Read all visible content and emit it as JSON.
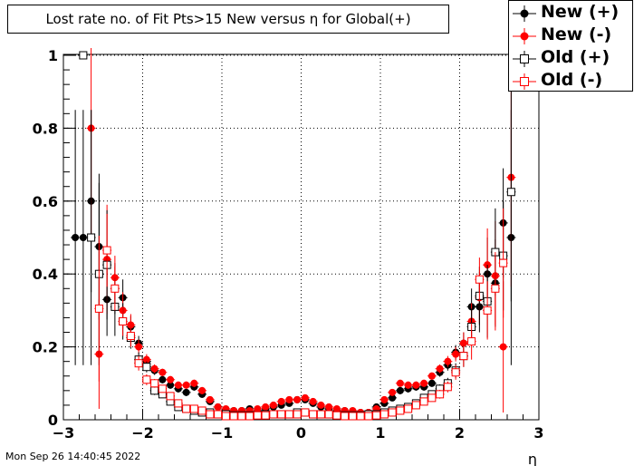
{
  "title": "Lost rate no. of Fit Pts>15 New versus η for Global(+)",
  "footer": "Mon Sep 26 14:40:45 2022",
  "chart_data": {
    "type": "scatter",
    "title": "Lost rate no. of Fit Pts>15 New versus η for Global(+)",
    "xlabel": "η",
    "ylabel": "",
    "xlim": [
      -3,
      3
    ],
    "ylim": [
      0,
      1.02
    ],
    "xticks": [
      "−3",
      "−2",
      "−1",
      "0",
      "1",
      "2",
      "3"
    ],
    "yticks": [
      "0",
      "0.2",
      "0.4",
      "0.6",
      "0.8",
      "1"
    ],
    "grid": true,
    "legend_position": "top-right",
    "series": [
      {
        "name": "New (+)",
        "marker": "filled-circle",
        "color": "#000000",
        "x": [
          -2.85,
          -2.75,
          -2.65,
          -2.55,
          -2.45,
          -2.35,
          -2.25,
          -2.15,
          -2.05,
          -1.95,
          -1.85,
          -1.75,
          -1.65,
          -1.55,
          -1.45,
          -1.35,
          -1.25,
          -1.15,
          -1.05,
          -0.95,
          -0.85,
          -0.75,
          -0.65,
          -0.55,
          -0.45,
          -0.35,
          -0.25,
          -0.15,
          -0.05,
          0.05,
          0.15,
          0.25,
          0.35,
          0.45,
          0.55,
          0.65,
          0.75,
          0.85,
          0.95,
          1.05,
          1.15,
          1.25,
          1.35,
          1.45,
          1.55,
          1.65,
          1.75,
          1.85,
          1.95,
          2.05,
          2.15,
          2.25,
          2.35,
          2.45,
          2.55,
          2.65
        ],
        "y": [
          0.5,
          0.5,
          0.6,
          0.475,
          0.33,
          0.36,
          0.335,
          0.255,
          0.21,
          0.16,
          0.135,
          0.11,
          0.095,
          0.085,
          0.075,
          0.09,
          0.07,
          0.05,
          0.035,
          0.025,
          0.025,
          0.025,
          0.03,
          0.025,
          0.03,
          0.035,
          0.04,
          0.045,
          0.055,
          0.055,
          0.045,
          0.035,
          0.03,
          0.025,
          0.025,
          0.02,
          0.02,
          0.02,
          0.035,
          0.045,
          0.06,
          0.08,
          0.085,
          0.09,
          0.09,
          0.1,
          0.13,
          0.15,
          0.185,
          0.21,
          0.31,
          0.31,
          0.4,
          0.375,
          0.54,
          0.5
        ],
        "err": [
          0.35,
          0.35,
          0.25,
          0.2,
          0.1,
          0.07,
          0.05,
          0.03,
          0.02,
          0.015,
          0.012,
          0.01,
          0.01,
          0.01,
          0.01,
          0.01,
          0.01,
          0.008,
          0.006,
          0.006,
          0.006,
          0.006,
          0.006,
          0.006,
          0.006,
          0.006,
          0.006,
          0.006,
          0.006,
          0.006,
          0.006,
          0.006,
          0.006,
          0.006,
          0.006,
          0.006,
          0.006,
          0.006,
          0.006,
          0.006,
          0.008,
          0.01,
          0.01,
          0.01,
          0.01,
          0.01,
          0.012,
          0.015,
          0.02,
          0.03,
          0.05,
          0.07,
          0.1,
          0.12,
          0.15,
          0.35
        ]
      },
      {
        "name": "New (-)",
        "marker": "filled-circle",
        "color": "#ff0000",
        "x": [
          -2.55,
          -2.65,
          -2.45,
          -2.35,
          -2.25,
          -2.15,
          -2.05,
          -1.95,
          -1.85,
          -1.75,
          -1.65,
          -1.55,
          -1.45,
          -1.35,
          -1.25,
          -1.15,
          -1.05,
          -0.95,
          -0.85,
          -0.75,
          -0.65,
          -0.55,
          -0.45,
          -0.35,
          -0.25,
          -0.15,
          -0.05,
          0.05,
          0.15,
          0.25,
          0.35,
          0.45,
          0.55,
          0.65,
          0.75,
          0.85,
          0.95,
          1.05,
          1.15,
          1.25,
          1.35,
          1.45,
          1.55,
          1.65,
          1.75,
          1.85,
          1.95,
          2.05,
          2.15,
          2.25,
          2.35,
          2.45,
          2.55,
          2.65
        ],
        "y": [
          0.18,
          0.8,
          0.44,
          0.39,
          0.3,
          0.26,
          0.2,
          0.165,
          0.14,
          0.13,
          0.11,
          0.095,
          0.095,
          0.1,
          0.08,
          0.055,
          0.035,
          0.03,
          0.025,
          0.025,
          0.025,
          0.03,
          0.035,
          0.04,
          0.05,
          0.055,
          0.055,
          0.06,
          0.05,
          0.04,
          0.035,
          0.03,
          0.025,
          0.025,
          0.02,
          0.02,
          0.03,
          0.055,
          0.075,
          0.1,
          0.095,
          0.095,
          0.1,
          0.12,
          0.14,
          0.16,
          0.18,
          0.21,
          0.27,
          0.335,
          0.425,
          0.395,
          0.2,
          0.665
        ],
        "err": [
          0.15,
          0.3,
          0.15,
          0.06,
          0.05,
          0.03,
          0.02,
          0.015,
          0.012,
          0.01,
          0.01,
          0.01,
          0.01,
          0.01,
          0.01,
          0.008,
          0.006,
          0.006,
          0.006,
          0.006,
          0.006,
          0.006,
          0.006,
          0.006,
          0.006,
          0.006,
          0.006,
          0.006,
          0.006,
          0.006,
          0.006,
          0.006,
          0.006,
          0.006,
          0.006,
          0.006,
          0.006,
          0.006,
          0.008,
          0.01,
          0.01,
          0.01,
          0.01,
          0.01,
          0.012,
          0.015,
          0.02,
          0.03,
          0.05,
          0.07,
          0.1,
          0.15,
          0.18,
          0.3
        ]
      },
      {
        "name": "Old (+)",
        "marker": "open-square",
        "color": "#000000",
        "x": [
          -2.75,
          -2.65,
          -2.55,
          -2.45,
          -2.35,
          -2.25,
          -2.15,
          -2.05,
          -1.95,
          -1.85,
          -1.75,
          -1.65,
          -1.55,
          -1.45,
          -1.35,
          -1.25,
          -1.15,
          -1.05,
          -0.95,
          -0.85,
          -0.75,
          -0.65,
          -0.55,
          -0.45,
          -0.35,
          -0.25,
          -0.15,
          -0.05,
          0.05,
          0.15,
          0.25,
          0.35,
          0.45,
          0.55,
          0.65,
          0.75,
          0.85,
          0.95,
          1.05,
          1.15,
          1.25,
          1.35,
          1.45,
          1.55,
          1.65,
          1.75,
          1.85,
          1.95,
          2.05,
          2.15,
          2.25,
          2.35,
          2.45,
          2.55,
          2.65
        ],
        "y": [
          1.0,
          0.5,
          0.4,
          0.425,
          0.31,
          0.27,
          0.225,
          0.165,
          0.145,
          0.08,
          0.07,
          0.05,
          0.035,
          0.03,
          0.025,
          0.02,
          0.02,
          0.015,
          0.015,
          0.012,
          0.012,
          0.012,
          0.012,
          0.015,
          0.015,
          0.015,
          0.015,
          0.02,
          0.02,
          0.015,
          0.015,
          0.015,
          0.012,
          0.012,
          0.012,
          0.012,
          0.015,
          0.015,
          0.02,
          0.025,
          0.03,
          0.035,
          0.045,
          0.06,
          0.07,
          0.085,
          0.1,
          0.135,
          0.175,
          0.255,
          0.34,
          0.325,
          0.46,
          0.45,
          0.625
        ],
        "err": [
          0.0,
          0.35,
          0.25,
          0.15,
          0.08,
          0.05,
          0.03,
          0.02,
          0.015,
          0.012,
          0.01,
          0.01,
          0.01,
          0.008,
          0.006,
          0.005,
          0.005,
          0.005,
          0.005,
          0.005,
          0.005,
          0.005,
          0.005,
          0.005,
          0.005,
          0.005,
          0.005,
          0.005,
          0.005,
          0.005,
          0.005,
          0.005,
          0.005,
          0.005,
          0.005,
          0.005,
          0.005,
          0.005,
          0.005,
          0.005,
          0.006,
          0.008,
          0.01,
          0.01,
          0.01,
          0.012,
          0.015,
          0.02,
          0.03,
          0.05,
          0.08,
          0.1,
          0.12,
          0.15,
          0.3
        ]
      },
      {
        "name": "Old (-)",
        "marker": "open-square",
        "color": "#ff0000",
        "x": [
          -2.55,
          -2.45,
          -2.35,
          -2.25,
          -2.15,
          -2.05,
          -1.95,
          -1.85,
          -1.75,
          -1.65,
          -1.55,
          -1.45,
          -1.35,
          -1.25,
          -1.15,
          -1.05,
          -0.95,
          -0.85,
          -0.75,
          -0.65,
          -0.55,
          -0.45,
          -0.35,
          -0.25,
          -0.15,
          -0.05,
          0.05,
          0.15,
          0.25,
          0.35,
          0.45,
          0.55,
          0.65,
          0.75,
          0.85,
          0.95,
          1.05,
          1.15,
          1.25,
          1.35,
          1.45,
          1.55,
          1.65,
          1.75,
          1.85,
          1.95,
          2.05,
          2.15,
          2.25,
          2.35,
          2.45,
          2.55
        ],
        "y": [
          0.305,
          0.465,
          0.36,
          0.27,
          0.23,
          0.155,
          0.11,
          0.1,
          0.085,
          0.065,
          0.045,
          0.03,
          0.03,
          0.025,
          0.015,
          0.015,
          0.01,
          0.01,
          0.01,
          0.01,
          0.012,
          0.012,
          0.015,
          0.015,
          0.015,
          0.015,
          0.02,
          0.015,
          0.015,
          0.015,
          0.012,
          0.01,
          0.01,
          0.01,
          0.01,
          0.012,
          0.015,
          0.02,
          0.025,
          0.03,
          0.04,
          0.05,
          0.06,
          0.07,
          0.09,
          0.13,
          0.175,
          0.215,
          0.385,
          0.3,
          0.36,
          0.43
        ],
        "err": [
          0.2,
          0.1,
          0.06,
          0.04,
          0.03,
          0.02,
          0.015,
          0.012,
          0.01,
          0.01,
          0.008,
          0.006,
          0.005,
          0.005,
          0.005,
          0.005,
          0.005,
          0.005,
          0.005,
          0.005,
          0.005,
          0.005,
          0.005,
          0.005,
          0.005,
          0.005,
          0.005,
          0.005,
          0.005,
          0.005,
          0.005,
          0.005,
          0.005,
          0.005,
          0.005,
          0.005,
          0.005,
          0.005,
          0.006,
          0.008,
          0.01,
          0.01,
          0.01,
          0.012,
          0.015,
          0.02,
          0.03,
          0.05,
          0.06,
          0.08,
          0.1,
          0.15
        ]
      }
    ]
  }
}
